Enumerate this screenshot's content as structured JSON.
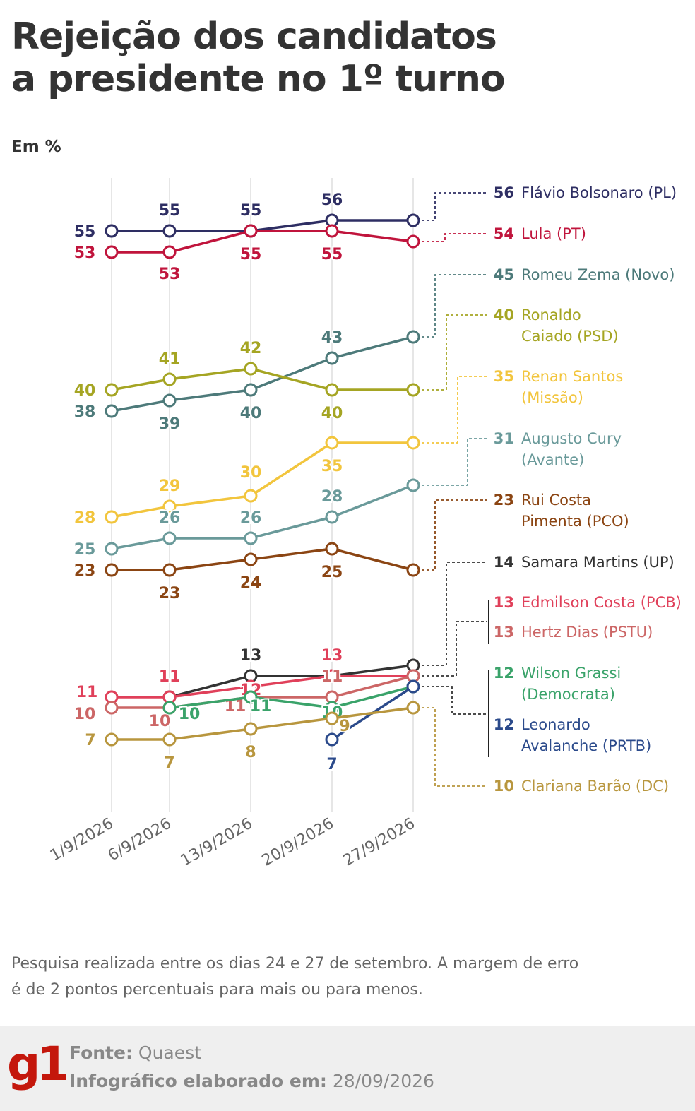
{
  "header": {
    "title_line1": "Rejeição dos candidatos",
    "title_line2": "a presidente no 1º turno",
    "unit": "Em %"
  },
  "chart_data": {
    "type": "line",
    "title": "Rejeição dos candidatos a presidente no 1º turno",
    "ylabel": "Em %",
    "x": [
      "1/9/2026",
      "6/9/2026",
      "13/9/2026",
      "20/9/2026",
      "27/9/2026"
    ],
    "grid": "vertical",
    "series": [
      {
        "name": "Flávio Bolsonaro (PL)",
        "name_lines": [
          "Flávio Bolsonaro (PL)"
        ],
        "color": "#2e2e63",
        "values": [
          55,
          55,
          55,
          56,
          56
        ],
        "labels": [
          "55",
          "55",
          "55",
          "56",
          null
        ],
        "final": "56"
      },
      {
        "name": "Lula (PT)",
        "name_lines": [
          "Lula (PT)"
        ],
        "color": "#c0143c",
        "values": [
          53,
          53,
          55,
          55,
          54
        ],
        "labels": [
          "53",
          "53",
          "55",
          "55",
          null
        ],
        "final": "54"
      },
      {
        "name": "Romeu Zema (Novo)",
        "name_lines": [
          "Romeu Zema (Novo)"
        ],
        "color": "#4d7a7a",
        "values": [
          38,
          39,
          40,
          43,
          45
        ],
        "labels": [
          "38",
          "39",
          "40",
          "43",
          null
        ],
        "final": "45"
      },
      {
        "name": "Ronaldo Caiado (PSD)",
        "name_lines": [
          "Ronaldo",
          "Caiado (PSD)"
        ],
        "color": "#a5a523",
        "values": [
          40,
          41,
          42,
          40,
          40
        ],
        "labels": [
          "40",
          "41",
          "42",
          "40",
          null
        ],
        "final": "40"
      },
      {
        "name": "Renan Santos (Missão)",
        "name_lines": [
          "Renan Santos",
          "(Missão)"
        ],
        "color": "#f2c53d",
        "values": [
          28,
          29,
          30,
          35,
          35
        ],
        "labels": [
          "28",
          "29",
          "30",
          "35",
          null
        ],
        "final": "35"
      },
      {
        "name": "Augusto Cury (Avante)",
        "name_lines": [
          "Augusto Cury",
          "(Avante)"
        ],
        "color": "#6a9a9a",
        "values": [
          25,
          26,
          26,
          28,
          31
        ],
        "labels": [
          "25",
          "26",
          "26",
          "28",
          null
        ],
        "final": "31"
      },
      {
        "name": "Rui Costa Pimenta (PCO)",
        "name_lines": [
          "Rui Costa",
          "Pimenta (PCO)"
        ],
        "color": "#8b4513",
        "values": [
          23,
          23,
          24,
          25,
          23
        ],
        "labels": [
          "23",
          "23",
          "24",
          "25",
          null
        ],
        "final": "23"
      },
      {
        "name": "Samara Martins (UP)",
        "name_lines": [
          "Samara Martins (UP)"
        ],
        "color": "#333333",
        "values": [
          null,
          11,
          13,
          13,
          14
        ],
        "labels": [
          null,
          null,
          "13",
          null,
          null
        ],
        "final": "14"
      },
      {
        "name": "Edmilson Costa (PCB)",
        "name_lines": [
          "Edmilson Costa (PCB)"
        ],
        "color": "#e0405a",
        "values": [
          11,
          11,
          12,
          13,
          13
        ],
        "labels": [
          "11",
          "11",
          "12",
          "13",
          null
        ],
        "final": "13"
      },
      {
        "name": "Hertz Dias (PSTU)",
        "name_lines": [
          "Hertz Dias (PSTU)"
        ],
        "color": "#cc6666",
        "values": [
          10,
          10,
          11,
          11,
          13
        ],
        "labels": [
          "10",
          "10",
          "11",
          "11",
          null
        ],
        "final": "13"
      },
      {
        "name": "Wilson Grassi (Democrata)",
        "name_lines": [
          "Wilson Grassi",
          "(Democrata)"
        ],
        "color": "#3aa36a",
        "values": [
          null,
          10,
          11,
          10,
          12
        ],
        "labels": [
          null,
          "10",
          "11",
          "10",
          null
        ],
        "final": "12"
      },
      {
        "name": "Leonardo Avalanche (PRTB)",
        "name_lines": [
          "Leonardo",
          "Avalanche (PRTB)"
        ],
        "color": "#2b4a8b",
        "values": [
          null,
          null,
          null,
          7,
          12
        ],
        "labels": [
          null,
          null,
          null,
          "7",
          null
        ],
        "final": "12"
      },
      {
        "name": "Clariana Barão (DC)",
        "name_lines": [
          "Clariana Barão (DC)"
        ],
        "color": "#b8963e",
        "values": [
          7,
          7,
          8,
          9,
          10
        ],
        "labels": [
          "7",
          "7",
          "8",
          "9",
          null
        ],
        "final": "10"
      }
    ]
  },
  "footer": {
    "note": "Pesquisa realizada entre os dias 24 e 27 de setembro. A margem de erro é de 2 pontos percentuais para mais ou para menos.",
    "logo": "g1",
    "source_label": "Fonte:",
    "source_value": "Quaest",
    "made_label": "Infográfico elaborado em:",
    "made_value": "28/09/2026"
  }
}
